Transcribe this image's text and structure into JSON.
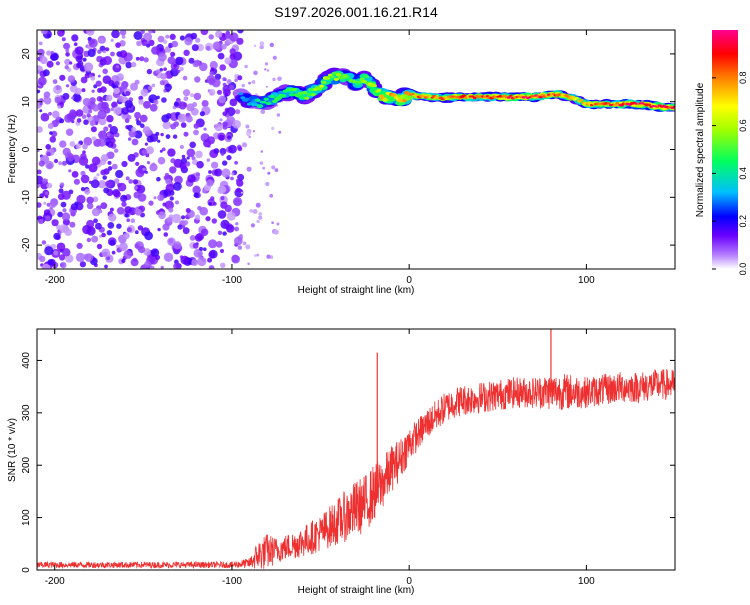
{
  "title": "S197.2026.001.16.21.R14",
  "colorbar": {
    "label": "Normalized spectral amplitude",
    "ticks": [
      "0.0",
      "0.2",
      "0.4",
      "0.6",
      "0.8"
    ],
    "tick_values": [
      0.0,
      0.2,
      0.4,
      0.6,
      0.8
    ],
    "range": [
      0,
      1
    ],
    "colormap": [
      "#ffffff",
      "#a000ff",
      "#0000ff",
      "#00e0ff",
      "#00ff40",
      "#ffff00",
      "#ff8000",
      "#ff0000",
      "#ff0080"
    ]
  },
  "chart_data": [
    {
      "type": "heatmap",
      "name": "spectrogram",
      "xlabel": "Height of straight line (km)",
      "ylabel": "Frequency (Hz)",
      "xlim": [
        -210,
        150
      ],
      "ylim": [
        -25,
        25
      ],
      "x_ticks": [
        "-200",
        "-100",
        "0",
        "100"
      ],
      "x_tick_values": [
        -200,
        -100,
        0,
        100
      ],
      "y_ticks": [
        "20",
        "10",
        "0",
        "-10",
        "-20"
      ],
      "y_tick_values": [
        20,
        10,
        0,
        -10,
        -20
      ],
      "noise_region_x": [
        -210,
        -95
      ],
      "ridge": {
        "x": [
          -95,
          -90,
          -85,
          -80,
          -75,
          -70,
          -65,
          -60,
          -55,
          -50,
          -45,
          -40,
          -35,
          -30,
          -25,
          -20,
          -15,
          -10,
          -5,
          0,
          10,
          20,
          30,
          40,
          50,
          60,
          70,
          80,
          85,
          90,
          95,
          100,
          110,
          120,
          130,
          140,
          150
        ],
        "freq": [
          11,
          10,
          9.5,
          10,
          11,
          12,
          12,
          11,
          12,
          13,
          15,
          15.5,
          15,
          14,
          15,
          13,
          11,
          11,
          10.5,
          11.5,
          11,
          10.8,
          11,
          11,
          11,
          11,
          11,
          11.5,
          11.5,
          11,
          10.5,
          9.5,
          9.5,
          9.5,
          9.5,
          9,
          8.8
        ],
        "amplitude": [
          0.3,
          0.35,
          0.4,
          0.4,
          0.45,
          0.45,
          0.5,
          0.5,
          0.55,
          0.6,
          0.6,
          0.55,
          0.5,
          0.5,
          0.55,
          0.6,
          0.7,
          0.75,
          0.75,
          0.8,
          0.8,
          0.8,
          0.85,
          0.85,
          0.9,
          0.9,
          0.95,
          0.85,
          0.8,
          0.75,
          0.7,
          0.8,
          0.85,
          0.9,
          0.95,
          0.95,
          0.9
        ]
      }
    },
    {
      "type": "line",
      "name": "snr",
      "xlabel": "Height of straight line (km)",
      "ylabel": "SNR (10 * v/v)",
      "xlim": [
        -210,
        150
      ],
      "ylim": [
        0,
        460
      ],
      "x_ticks": [
        "-200",
        "-100",
        "0",
        "100"
      ],
      "x_tick_values": [
        -200,
        -100,
        0,
        100
      ],
      "y_ticks": [
        "400",
        "300",
        "200",
        "100",
        "0"
      ],
      "y_tick_values": [
        400,
        300,
        200,
        100,
        0
      ],
      "color": "#ee3030",
      "envelope": {
        "x": [
          -210,
          -100,
          -90,
          -85,
          -80,
          -75,
          -70,
          -60,
          -50,
          -40,
          -30,
          -25,
          -20,
          -15,
          -10,
          -5,
          0,
          5,
          10,
          15,
          20,
          25,
          30,
          40,
          50,
          60,
          70,
          80,
          90,
          100,
          110,
          120,
          130,
          140,
          150
        ],
        "base": [
          8,
          8,
          10,
          20,
          25,
          30,
          35,
          45,
          60,
          80,
          100,
          110,
          130,
          150,
          180,
          200,
          230,
          250,
          270,
          285,
          300,
          310,
          315,
          320,
          325,
          330,
          330,
          330,
          330,
          330,
          335,
          340,
          340,
          345,
          345
        ],
        "amplitude": [
          12,
          12,
          20,
          60,
          70,
          50,
          50,
          60,
          70,
          90,
          110,
          110,
          110,
          100,
          90,
          80,
          70,
          60,
          60,
          60,
          60,
          60,
          60,
          60,
          60,
          60,
          60,
          70,
          70,
          60,
          60,
          60,
          60,
          60,
          60
        ]
      },
      "spikes": [
        {
          "x": -18,
          "y": 415
        },
        {
          "x": 80,
          "y": 462
        }
      ]
    }
  ]
}
